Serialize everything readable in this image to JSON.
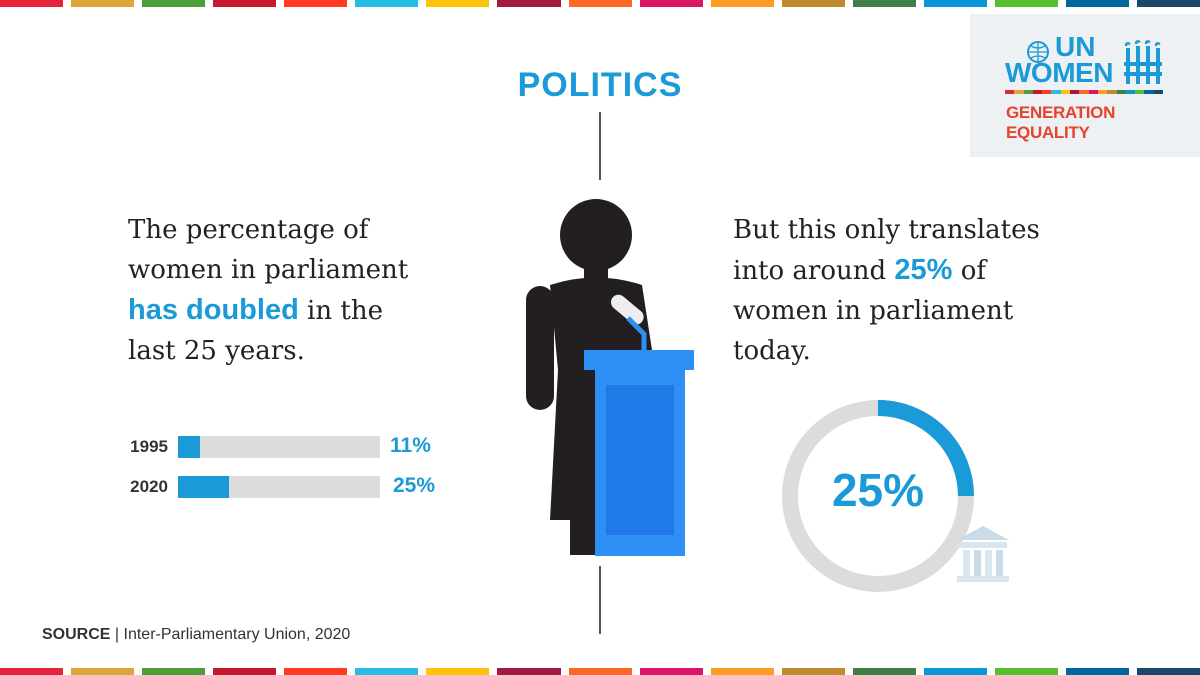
{
  "title": "POLITICS",
  "logo": {
    "un": "UN",
    "women": "WOMEN",
    "tagline": "GENERATION EQUALITY",
    "colors": {
      "blue": "#1b9ad8",
      "red": "#e5432a"
    }
  },
  "left_text": {
    "line1": "The percentage of",
    "line2": "women in parliament",
    "highlight": "has doubled",
    "line3_rest": " in the",
    "line4": "last 25 years."
  },
  "right_text": {
    "line1": "But this only translates",
    "line2_pre": "into around ",
    "highlight": "25%",
    "line2_post": " of",
    "line3": "women in parliament",
    "line4": "today."
  },
  "chart_data": [
    {
      "type": "bar",
      "orientation": "horizontal",
      "categories": [
        "1995",
        "2020"
      ],
      "values": [
        11,
        25
      ],
      "value_labels": [
        "11%",
        "25%"
      ],
      "xlim": [
        0,
        100
      ],
      "color": "#1b9ad8",
      "track_color": "#dcdcdc"
    },
    {
      "type": "pie",
      "style": "donut",
      "values": [
        25,
        75
      ],
      "label": "25%",
      "colors": [
        "#1b9ad8",
        "#dcdcdc"
      ],
      "icon": "parliament-building-icon"
    }
  ],
  "source": {
    "label": "SOURCE",
    "separator": "|",
    "text": "Inter-Parliamentary Union, 2020"
  },
  "stripe_colors": [
    "#e5243b",
    "#dda63a",
    "#4c9f38",
    "#c5192d",
    "#ff3a21",
    "#26bde2",
    "#fcc30b",
    "#a21942",
    "#fd6925",
    "#dd1367",
    "#fd9d24",
    "#bf8b2e",
    "#3f7e44",
    "#0a97d9",
    "#56c02b",
    "#00689d",
    "#19486a"
  ],
  "illustration": {
    "icon": "woman-speaker-at-podium-icon",
    "figure_color": "#231f20",
    "podium_color": "#2e8ff5"
  }
}
